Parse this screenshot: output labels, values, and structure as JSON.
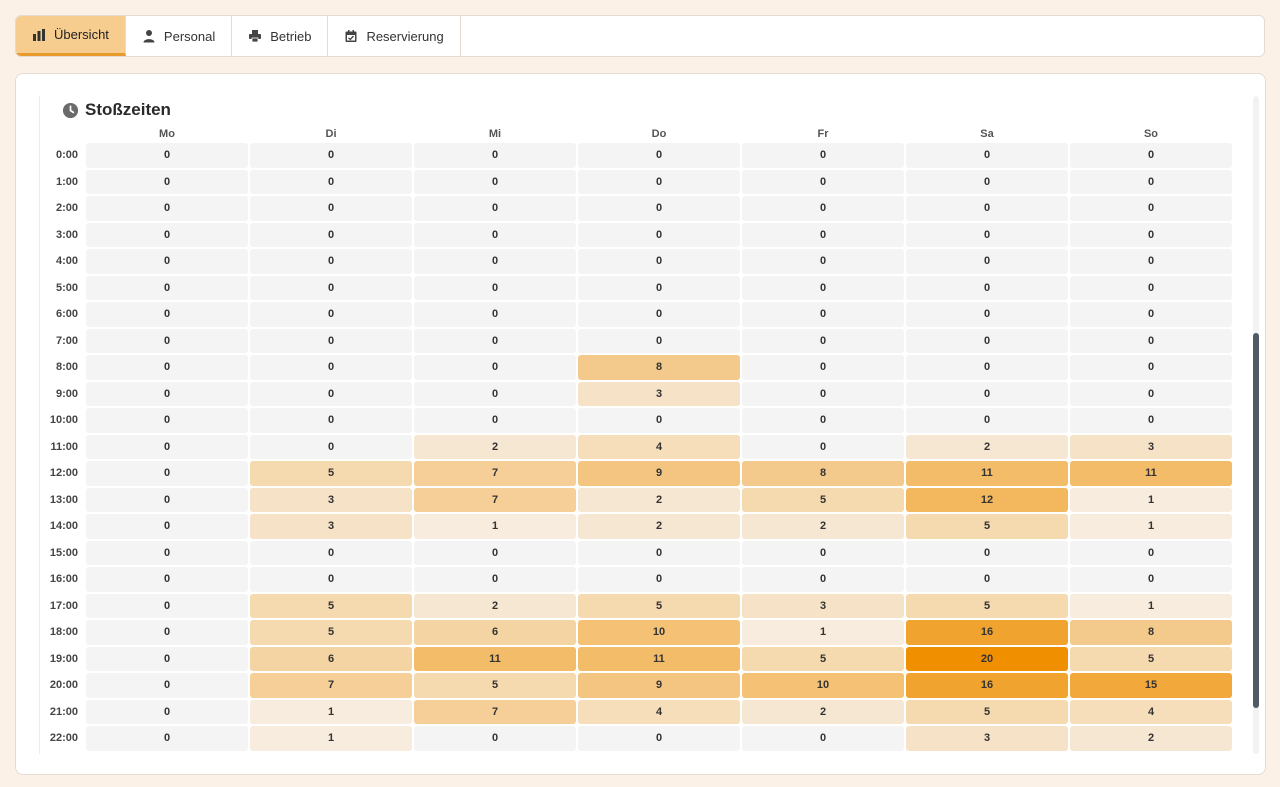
{
  "tabs": [
    {
      "label": "Übersicht",
      "icon": "bar-chart-icon",
      "active": true
    },
    {
      "label": "Personal",
      "icon": "person-icon",
      "active": false
    },
    {
      "label": "Betrieb",
      "icon": "printer-icon",
      "active": false
    },
    {
      "label": "Reservierung",
      "icon": "calendar-icon",
      "active": false
    }
  ],
  "panel": {
    "title": "Stoßzeiten",
    "icon": "clock-icon"
  },
  "colors": {
    "accent": "#f09000",
    "active_tab": "#f6cd8f",
    "empty_cell": "#f4f4f4"
  },
  "heatmap": {
    "days": [
      "Mo",
      "Di",
      "Mi",
      "Do",
      "Fr",
      "Sa",
      "So"
    ],
    "hours": [
      "0:00",
      "1:00",
      "2:00",
      "3:00",
      "4:00",
      "5:00",
      "6:00",
      "7:00",
      "8:00",
      "9:00",
      "10:00",
      "11:00",
      "12:00",
      "13:00",
      "14:00",
      "15:00",
      "16:00",
      "17:00",
      "18:00",
      "19:00",
      "20:00",
      "21:00",
      "22:00"
    ],
    "max": 20,
    "values": [
      [
        0,
        0,
        0,
        0,
        0,
        0,
        0
      ],
      [
        0,
        0,
        0,
        0,
        0,
        0,
        0
      ],
      [
        0,
        0,
        0,
        0,
        0,
        0,
        0
      ],
      [
        0,
        0,
        0,
        0,
        0,
        0,
        0
      ],
      [
        0,
        0,
        0,
        0,
        0,
        0,
        0
      ],
      [
        0,
        0,
        0,
        0,
        0,
        0,
        0
      ],
      [
        0,
        0,
        0,
        0,
        0,
        0,
        0
      ],
      [
        0,
        0,
        0,
        0,
        0,
        0,
        0
      ],
      [
        0,
        0,
        0,
        8,
        0,
        0,
        0
      ],
      [
        0,
        0,
        0,
        3,
        0,
        0,
        0
      ],
      [
        0,
        0,
        0,
        0,
        0,
        0,
        0
      ],
      [
        0,
        0,
        2,
        4,
        0,
        2,
        3
      ],
      [
        0,
        5,
        7,
        9,
        8,
        11,
        11
      ],
      [
        0,
        3,
        7,
        2,
        5,
        12,
        1
      ],
      [
        0,
        3,
        1,
        2,
        2,
        5,
        1
      ],
      [
        0,
        0,
        0,
        0,
        0,
        0,
        0
      ],
      [
        0,
        0,
        0,
        0,
        0,
        0,
        0
      ],
      [
        0,
        5,
        2,
        5,
        3,
        5,
        1
      ],
      [
        0,
        5,
        6,
        10,
        1,
        16,
        8
      ],
      [
        0,
        6,
        11,
        11,
        5,
        20,
        5
      ],
      [
        0,
        7,
        5,
        9,
        10,
        16,
        15
      ],
      [
        0,
        1,
        7,
        4,
        2,
        5,
        4
      ],
      [
        0,
        1,
        0,
        0,
        0,
        3,
        2
      ]
    ]
  },
  "scroll": {
    "position": 0.36,
    "visible_fraction": 0.57
  }
}
